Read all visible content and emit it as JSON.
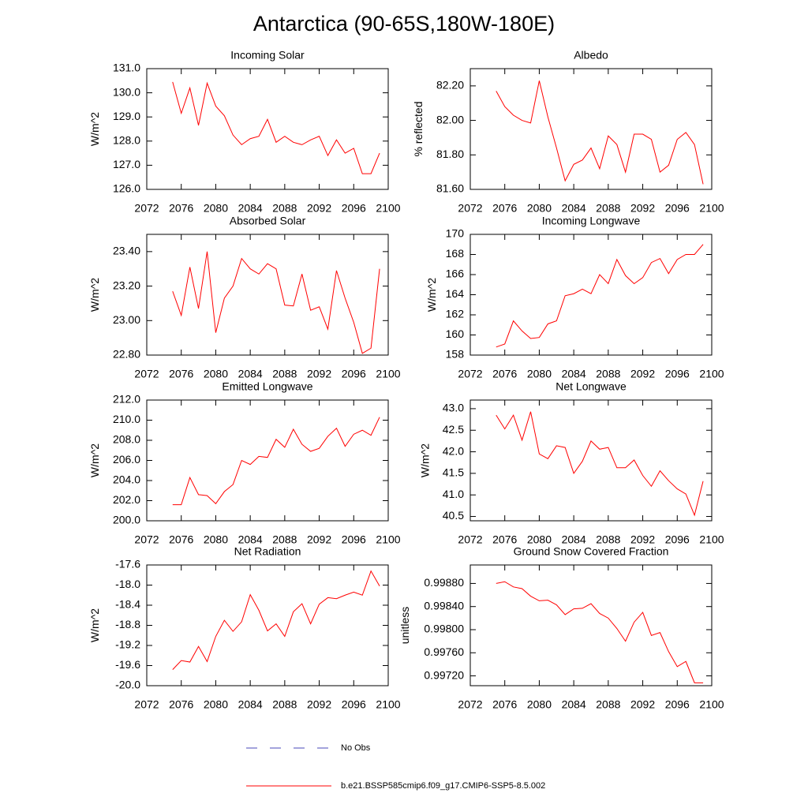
{
  "title": "Antarctica (90-65S,180W-180E)",
  "legend": [
    {
      "name": "No Obs",
      "color": "#4a4ab8",
      "dashed": true
    },
    {
      "name": "b.e21.BSSP585cmip6.f09_g17.CMIP6-SSP5-8.5.002",
      "color": "#ff0000",
      "dashed": false
    }
  ],
  "chart_data": [
    {
      "type": "line",
      "title": "Incoming Solar",
      "ylabel": "W/m^2",
      "color": "#ff0000",
      "x": [
        2075,
        2076,
        2077,
        2078,
        2079,
        2080,
        2081,
        2082,
        2083,
        2084,
        2085,
        2086,
        2087,
        2088,
        2089,
        2090,
        2091,
        2092,
        2093,
        2094,
        2095,
        2096,
        2097,
        2098,
        2099
      ],
      "values": [
        130.45,
        129.15,
        130.2,
        128.65,
        130.4,
        129.45,
        129.05,
        128.25,
        127.85,
        128.1,
        128.2,
        128.9,
        127.95,
        128.2,
        127.95,
        127.85,
        128.05,
        128.2,
        127.4,
        128.05,
        127.5,
        127.7,
        126.65,
        126.65,
        127.5
      ],
      "xlim": [
        2072,
        2100
      ],
      "xticks": [
        2072,
        2076,
        2080,
        2084,
        2088,
        2092,
        2096,
        2100
      ],
      "ylim": [
        126,
        131
      ],
      "yticks": [
        {
          "value": 126,
          "label": "126.0"
        },
        {
          "value": 127,
          "label": "127.0"
        },
        {
          "value": 128,
          "label": "128.0"
        },
        {
          "value": 129,
          "label": "129.0"
        },
        {
          "value": 130,
          "label": "130.0"
        },
        {
          "value": 131,
          "label": "131.0"
        }
      ]
    },
    {
      "type": "line",
      "title": "Albedo",
      "ylabel": "% reflected",
      "color": "#ff0000",
      "x": [
        2075,
        2076,
        2077,
        2078,
        2079,
        2080,
        2081,
        2082,
        2083,
        2084,
        2085,
        2086,
        2087,
        2088,
        2089,
        2090,
        2091,
        2092,
        2093,
        2094,
        2095,
        2096,
        2097,
        2098,
        2099
      ],
      "values": [
        82.17,
        82.08,
        82.03,
        82.0,
        81.985,
        82.23,
        82.02,
        81.84,
        81.65,
        81.745,
        81.77,
        81.84,
        81.72,
        81.91,
        81.86,
        81.7,
        81.92,
        81.92,
        81.89,
        81.7,
        81.74,
        81.89,
        81.93,
        81.86,
        81.63
      ],
      "xlim": [
        2072,
        2100
      ],
      "xticks": [
        2072,
        2076,
        2080,
        2084,
        2088,
        2092,
        2096,
        2100
      ],
      "ylim": [
        81.6,
        82.3
      ],
      "yticks": [
        {
          "value": 81.6,
          "label": "81.60"
        },
        {
          "value": 81.8,
          "label": "81.80"
        },
        {
          "value": 82,
          "label": "82.00"
        },
        {
          "value": 82.2,
          "label": "82.20"
        }
      ]
    },
    {
      "type": "line",
      "title": "Absorbed Solar",
      "ylabel": "W/m^2",
      "color": "#ff0000",
      "x": [
        2075,
        2076,
        2077,
        2078,
        2079,
        2080,
        2081,
        2082,
        2083,
        2084,
        2085,
        2086,
        2087,
        2088,
        2089,
        2090,
        2091,
        2092,
        2093,
        2094,
        2095,
        2096,
        2097,
        2098,
        2099
      ],
      "values": [
        23.17,
        23.03,
        23.31,
        23.07,
        23.4,
        22.93,
        23.13,
        23.2,
        23.36,
        23.3,
        23.27,
        23.33,
        23.3,
        23.09,
        23.085,
        23.27,
        23.06,
        23.08,
        22.95,
        23.29,
        23.13,
        22.99,
        22.81,
        22.84,
        23.3
      ],
      "xlim": [
        2072,
        2100
      ],
      "xticks": [
        2072,
        2076,
        2080,
        2084,
        2088,
        2092,
        2096,
        2100
      ],
      "ylim": [
        22.8,
        23.5
      ],
      "yticks": [
        {
          "value": 22.8,
          "label": "22.80"
        },
        {
          "value": 23,
          "label": "23.00"
        },
        {
          "value": 23.2,
          "label": "23.20"
        },
        {
          "value": 23.4,
          "label": "23.40"
        }
      ]
    },
    {
      "type": "line",
      "title": "Incoming Longwave",
      "ylabel": "W/m^2",
      "color": "#ff0000",
      "x": [
        2075,
        2076,
        2077,
        2078,
        2079,
        2080,
        2081,
        2082,
        2083,
        2084,
        2085,
        2086,
        2087,
        2088,
        2089,
        2090,
        2091,
        2092,
        2093,
        2094,
        2095,
        2096,
        2097,
        2098,
        2099
      ],
      "values": [
        158.8,
        159.1,
        161.4,
        160.4,
        159.65,
        159.75,
        161.1,
        161.4,
        163.9,
        164.1,
        164.55,
        164.1,
        166.0,
        165.1,
        167.5,
        165.9,
        165.1,
        165.7,
        167.2,
        167.6,
        166.1,
        167.5,
        168.0,
        168.0,
        169.0
      ],
      "xlim": [
        2072,
        2100
      ],
      "xticks": [
        2072,
        2076,
        2080,
        2084,
        2088,
        2092,
        2096,
        2100
      ],
      "ylim": [
        158,
        170
      ],
      "yticks": [
        158,
        160,
        162,
        164,
        166,
        168,
        170
      ]
    },
    {
      "type": "line",
      "title": "Emitted Longwave",
      "ylabel": "W/m^2",
      "color": "#ff0000",
      "x": [
        2075,
        2076,
        2077,
        2078,
        2079,
        2080,
        2081,
        2082,
        2083,
        2084,
        2085,
        2086,
        2087,
        2088,
        2089,
        2090,
        2091,
        2092,
        2093,
        2094,
        2095,
        2096,
        2097,
        2098,
        2099
      ],
      "values": [
        201.6,
        201.6,
        204.3,
        202.6,
        202.5,
        201.7,
        202.9,
        203.6,
        206.0,
        205.6,
        206.4,
        206.3,
        208.1,
        207.3,
        209.1,
        207.6,
        206.9,
        207.2,
        208.4,
        209.2,
        207.4,
        208.6,
        209.0,
        208.5,
        210.3
      ],
      "xlim": [
        2072,
        2100
      ],
      "xticks": [
        2072,
        2076,
        2080,
        2084,
        2088,
        2092,
        2096,
        2100
      ],
      "ylim": [
        200,
        212
      ],
      "yticks": [
        {
          "value": 200,
          "label": "200.0"
        },
        {
          "value": 202,
          "label": "202.0"
        },
        {
          "value": 204,
          "label": "204.0"
        },
        {
          "value": 206,
          "label": "206.0"
        },
        {
          "value": 208,
          "label": "208.0"
        },
        {
          "value": 210,
          "label": "210.0"
        },
        {
          "value": 212,
          "label": "212.0"
        }
      ]
    },
    {
      "type": "line",
      "title": "Net Longwave",
      "ylabel": "W/m^2",
      "color": "#ff0000",
      "x": [
        2075,
        2076,
        2077,
        2078,
        2079,
        2080,
        2081,
        2082,
        2083,
        2084,
        2085,
        2086,
        2087,
        2088,
        2089,
        2090,
        2091,
        2092,
        2093,
        2094,
        2095,
        2096,
        2097,
        2098,
        2099
      ],
      "values": [
        42.85,
        42.53,
        42.85,
        42.27,
        42.93,
        41.95,
        41.84,
        42.14,
        42.1,
        41.5,
        41.78,
        42.25,
        42.06,
        42.1,
        41.63,
        41.63,
        41.81,
        41.45,
        41.2,
        41.56,
        41.33,
        41.14,
        41.02,
        40.53,
        41.32
      ],
      "xlim": [
        2072,
        2100
      ],
      "xticks": [
        2072,
        2076,
        2080,
        2084,
        2088,
        2092,
        2096,
        2100
      ],
      "ylim": [
        40.4,
        43.2
      ],
      "yticks": [
        40.5,
        {
          "value": 41,
          "label": "41.0"
        },
        41.5,
        {
          "value": 42,
          "label": "42.0"
        },
        42.5,
        {
          "value": 43,
          "label": "43.0"
        }
      ]
    },
    {
      "type": "line",
      "title": "Net Radiation",
      "ylabel": "W/m^2",
      "color": "#ff0000",
      "x": [
        2075,
        2076,
        2077,
        2078,
        2079,
        2080,
        2081,
        2082,
        2083,
        2084,
        2085,
        2086,
        2087,
        2088,
        2089,
        2090,
        2091,
        2092,
        2093,
        2094,
        2095,
        2096,
        2097,
        2098,
        2099
      ],
      "values": [
        -19.68,
        -19.5,
        -19.53,
        -19.22,
        -19.52,
        -19.02,
        -18.7,
        -18.92,
        -18.73,
        -18.19,
        -18.5,
        -18.91,
        -18.77,
        -19.02,
        -18.53,
        -18.37,
        -18.77,
        -18.38,
        -18.25,
        -18.27,
        -18.2,
        -18.14,
        -18.2,
        -17.72,
        -18.02
      ],
      "xlim": [
        2072,
        2100
      ],
      "xticks": [
        2072,
        2076,
        2080,
        2084,
        2088,
        2092,
        2096,
        2100
      ],
      "ylim": [
        -20,
        -17.6
      ],
      "yticks": [
        {
          "value": -20,
          "label": "-20.0"
        },
        -19.6,
        -19.2,
        -18.8,
        -18.4,
        {
          "value": -18,
          "label": "-18.0"
        },
        -17.6
      ]
    },
    {
      "type": "line",
      "title": "Ground Snow Covered Fraction",
      "ylabel": "unitless",
      "color": "#ff0000",
      "x": [
        2075,
        2076,
        2077,
        2078,
        2079,
        2080,
        2081,
        2082,
        2083,
        2084,
        2085,
        2086,
        2087,
        2088,
        2089,
        2090,
        2091,
        2092,
        2093,
        2094,
        2095,
        2096,
        2097,
        2098,
        2099
      ],
      "values": [
        0.9988,
        0.99883,
        0.99874,
        0.99871,
        0.99858,
        0.9985,
        0.99851,
        0.99843,
        0.99826,
        0.99836,
        0.99837,
        0.99845,
        0.99828,
        0.9982,
        0.99802,
        0.9978,
        0.99813,
        0.9983,
        0.9979,
        0.99795,
        0.99762,
        0.99736,
        0.99745,
        0.99708,
        0.99708
      ],
      "xlim": [
        2072,
        2100
      ],
      "xticks": [
        2072,
        2076,
        2080,
        2084,
        2088,
        2092,
        2096,
        2100
      ],
      "ylim": [
        0.99703,
        0.99912
      ],
      "yticks": [
        {
          "value": 0.9972,
          "label": "0.99720"
        },
        {
          "value": 0.9976,
          "label": "0.99760"
        },
        {
          "value": 0.998,
          "label": "0.99800"
        },
        {
          "value": 0.9984,
          "label": "0.99840"
        },
        {
          "value": 0.9988,
          "label": "0.99880"
        }
      ]
    }
  ]
}
